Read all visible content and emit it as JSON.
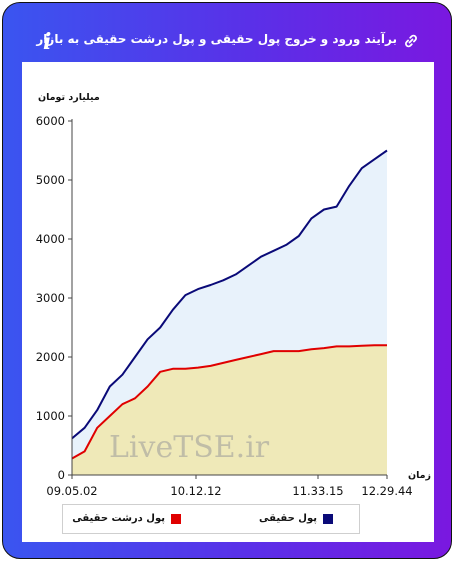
{
  "header": {
    "title": "برآیند ورود و خروج پول حقیقی و پول درشت حقیقی به بازار",
    "info_icon": "info-icon",
    "link_icon": "link-icon"
  },
  "colors": {
    "frame_left": "#3a55f0",
    "frame_right": "#7a18e0",
    "series_total_line": "#0a0a78",
    "series_total_fill": "#e8f2fb",
    "series_large_line": "#e00000",
    "series_large_fill": "#efe9b8"
  },
  "watermark": "LiveTSE.ir",
  "chart_data": {
    "type": "area",
    "ylabel": "میلیارد تومان",
    "xlabel": "زمان",
    "ylim": [
      0,
      6000
    ],
    "yticks": [
      0,
      1000,
      2000,
      3000,
      4000,
      5000,
      6000
    ],
    "xticks": [
      "09.05.02",
      "10.12.12",
      "11.33.15",
      "12.29.44"
    ],
    "grid": false,
    "legend_placement": "bottom",
    "series": [
      {
        "name": "پول حقیقی",
        "values": [
          620,
          800,
          1100,
          1500,
          1700,
          2000,
          2300,
          2500,
          2800,
          3050,
          3150,
          3220,
          3300,
          3400,
          3550,
          3700,
          3800,
          3900,
          4050,
          4350,
          4500,
          4550,
          4900,
          5200,
          5350,
          5500
        ]
      },
      {
        "name": "پول درشت حقیقی",
        "values": [
          280,
          400,
          800,
          1000,
          1200,
          1300,
          1500,
          1750,
          1800,
          1800,
          1820,
          1850,
          1900,
          1950,
          2000,
          2050,
          2100,
          2100,
          2100,
          2130,
          2150,
          2180,
          2180,
          2190,
          2200,
          2200
        ]
      }
    ]
  },
  "legend": {
    "items": [
      "پول حقیقی",
      "پول درشت حقیقی"
    ]
  }
}
